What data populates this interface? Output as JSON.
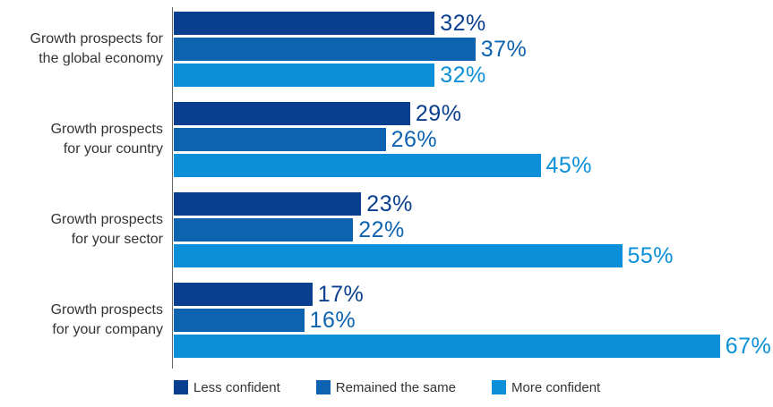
{
  "chart_data": {
    "type": "bar",
    "orientation": "horizontal",
    "categories": [
      "Growth prospects for\nthe global economy",
      "Growth prospects\nfor your country",
      "Growth prospects\nfor your sector",
      "Growth prospects\nfor your company"
    ],
    "series": [
      {
        "name": "Less confident",
        "values": [
          32,
          29,
          23,
          17
        ],
        "color": "#0a3f8f",
        "value_labels": [
          "32%",
          "29%",
          "23%",
          "17%"
        ]
      },
      {
        "name": "Remained the same",
        "values": [
          37,
          26,
          22,
          16
        ],
        "color": "#0e63b0",
        "value_labels": [
          "37%",
          "26%",
          "22%",
          "16%"
        ]
      },
      {
        "name": "More confident",
        "values": [
          32,
          45,
          55,
          67
        ],
        "color": "#0a8fd8",
        "value_labels": [
          "32%",
          "45%",
          "55%",
          "67%"
        ]
      }
    ],
    "xlim": [
      0,
      67
    ],
    "grid": false,
    "legend_position": "bottom-left",
    "title": "",
    "xlabel": "",
    "ylabel": ""
  }
}
